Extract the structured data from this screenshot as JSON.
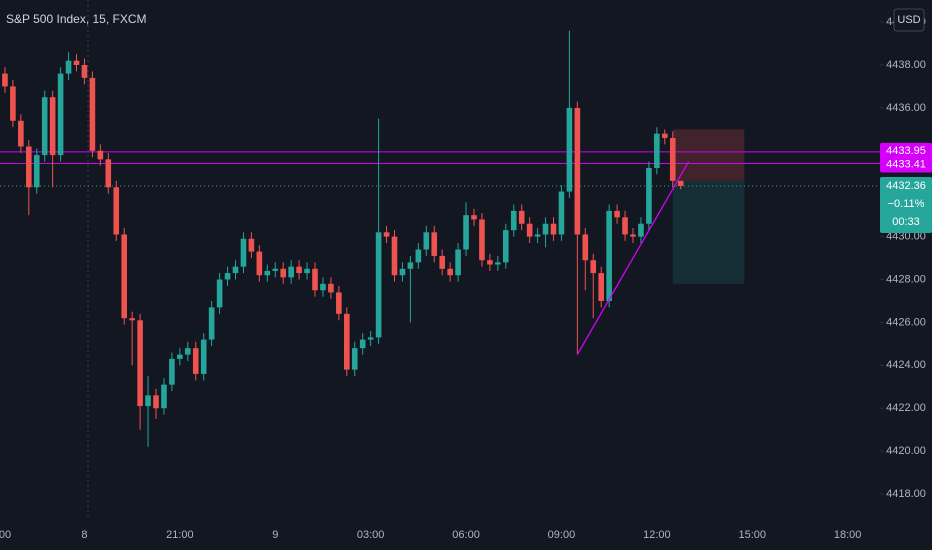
{
  "chart_data": {
    "type": "candlestick",
    "title": "S&P 500 Index, 15, FXCM",
    "currency": "USD",
    "categories": [
      null,
      "00",
      null,
      null,
      null,
      null,
      null,
      null,
      null,
      null,
      null,
      "8",
      null,
      null,
      null,
      null,
      null,
      null,
      null,
      null,
      null,
      null,
      null,
      "21:00",
      null,
      null,
      null,
      null,
      null,
      null,
      null,
      null,
      null,
      null,
      null,
      "9",
      null,
      null,
      null,
      null,
      null,
      null,
      null,
      null,
      null,
      null,
      null,
      "03:00",
      null,
      null,
      null,
      null,
      null,
      null,
      null,
      null,
      null,
      null,
      null,
      "06:00",
      null,
      null,
      null,
      null,
      null,
      null,
      null,
      null,
      null,
      null,
      null,
      "09:00",
      null,
      null,
      null,
      null,
      null,
      null,
      null,
      null,
      null,
      null,
      null,
      "12:00",
      null,
      null,
      null,
      null,
      null,
      null,
      null,
      null,
      null,
      null,
      null,
      "15:00",
      null,
      null,
      null,
      null,
      null,
      null,
      null,
      null,
      null,
      null,
      null,
      "18:00",
      null,
      null,
      null,
      null
    ],
    "open": [
      4438.2,
      4437.6,
      4437.0,
      4435.4,
      4434.2,
      4432.3,
      4433.8,
      4436.5,
      4433.8,
      4437.6,
      4438.2,
      4438.0,
      4437.4,
      4434.0,
      4433.6,
      4432.3,
      4430.1,
      4426.2,
      4426.1,
      4422.1,
      4422.6,
      4422.0,
      4423.1,
      4424.3,
      4424.5,
      4424.8,
      4423.6,
      4425.2,
      4426.7,
      4428.0,
      4428.3,
      4428.6,
      4429.9,
      4429.3,
      4428.2,
      4428.4,
      4428.5,
      4428.1,
      4428.6,
      4428.3,
      4428.5,
      4427.5,
      4427.8,
      4427.4,
      4426.4,
      4423.8,
      4424.8,
      4425.2,
      4425.3,
      4430.2,
      4430.0,
      4428.2,
      4428.5,
      4428.8,
      4429.4,
      4430.2,
      4429.1,
      4428.5,
      4428.2,
      4429.4,
      4431.0,
      4430.8,
      4428.9,
      4428.7,
      4428.8,
      4430.3,
      4431.2,
      4430.6,
      4430.0,
      4430.1,
      4430.6,
      4430.1,
      4432.1,
      4436.0,
      4430.1,
      4428.9,
      4428.3,
      4427.0,
      4431.2,
      4430.9,
      4430.1,
      4430.0,
      4430.6,
      4433.2,
      4434.8,
      4434.6,
      4432.6,
      null,
      null,
      null,
      null,
      null,
      null,
      null,
      null,
      null,
      null,
      null,
      null,
      null,
      null,
      null,
      null,
      null,
      null,
      null,
      null,
      null,
      null,
      null,
      null,
      null
    ],
    "high": [
      4438.5,
      4437.9,
      4437.3,
      4435.7,
      4434.5,
      4434.1,
      4436.8,
      4436.8,
      4437.9,
      4438.6,
      4438.5,
      4438.3,
      4437.7,
      4434.3,
      4433.9,
      4432.6,
      4430.4,
      4426.5,
      4426.4,
      4423.5,
      4422.9,
      4423.4,
      4424.6,
      4424.8,
      4425.1,
      4425.1,
      4425.5,
      4427.0,
      4428.3,
      4428.6,
      4428.9,
      4430.2,
      4430.2,
      4429.6,
      4428.7,
      4428.8,
      4428.8,
      4428.9,
      4428.9,
      4428.8,
      4428.8,
      4428.1,
      4428.1,
      4427.7,
      4426.7,
      4425.1,
      4425.5,
      4425.6,
      4435.5,
      4430.5,
      4430.3,
      4428.8,
      4429.1,
      4429.7,
      4430.5,
      4430.5,
      4429.4,
      4428.8,
      4429.7,
      4431.6,
      4431.3,
      4431.1,
      4429.2,
      4429.1,
      4430.6,
      4431.5,
      4431.5,
      4430.9,
      4430.4,
      4430.9,
      4430.9,
      4432.4,
      4439.6,
      4436.3,
      4430.4,
      4429.2,
      4428.6,
      4431.5,
      4431.5,
      4431.2,
      4430.4,
      4430.9,
      4433.5,
      4435.1,
      4435.0,
      4434.9,
      4432.6,
      null,
      null,
      null,
      null,
      null,
      null,
      null,
      null,
      null,
      null,
      null,
      null,
      null,
      null,
      null,
      null,
      null,
      null,
      null,
      null,
      null,
      null,
      null,
      null,
      null
    ],
    "low": [
      4437.3,
      4436.7,
      4435.1,
      4433.9,
      4431.0,
      4432.0,
      4433.5,
      4432.3,
      4433.5,
      4437.3,
      4437.7,
      4437.1,
      4433.7,
      4433.3,
      4432.0,
      4429.8,
      4425.9,
      4424.0,
      4421.0,
      4420.2,
      4421.5,
      4421.7,
      4422.8,
      4424.0,
      4424.2,
      4423.3,
      4423.3,
      4424.9,
      4426.4,
      4427.7,
      4428.0,
      4428.3,
      4429.0,
      4427.9,
      4427.9,
      4428.1,
      4427.8,
      4427.8,
      4428.0,
      4428.0,
      4427.2,
      4427.2,
      4427.1,
      4426.1,
      4423.5,
      4423.5,
      4424.5,
      4424.9,
      4425.0,
      4429.7,
      4427.9,
      4427.9,
      4426.0,
      4428.5,
      4429.1,
      4428.8,
      4428.2,
      4427.9,
      4427.9,
      4429.1,
      4430.5,
      4428.6,
      4428.4,
      4428.4,
      4428.5,
      4430.0,
      4430.3,
      4429.7,
      4429.7,
      4429.5,
      4429.8,
      4429.8,
      4431.8,
      4424.5,
      4427.5,
      4426.2,
      4426.7,
      4426.7,
      4430.6,
      4429.8,
      4429.7,
      4429.7,
      4430.3,
      4432.9,
      4434.3,
      4432.3,
      4432.2,
      null,
      null,
      null,
      null,
      null,
      null,
      null,
      null,
      null,
      null,
      null,
      null,
      null,
      null,
      null,
      null,
      null,
      null,
      null,
      null,
      null,
      null,
      null,
      null,
      null
    ],
    "close": [
      4437.6,
      4437.0,
      4435.4,
      4434.2,
      4432.3,
      4433.8,
      4436.5,
      4433.8,
      4437.6,
      4438.2,
      4438.0,
      4437.4,
      4434.0,
      4433.6,
      4432.3,
      4430.1,
      4426.2,
      4426.1,
      4422.1,
      4422.6,
      4422.0,
      4423.1,
      4424.3,
      4424.5,
      4424.8,
      4423.6,
      4425.2,
      4426.7,
      4428.0,
      4428.3,
      4428.6,
      4429.9,
      4429.3,
      4428.2,
      4428.4,
      4428.5,
      4428.1,
      4428.6,
      4428.3,
      4428.5,
      4427.5,
      4427.8,
      4427.4,
      4426.4,
      4423.8,
      4424.8,
      4425.2,
      4425.3,
      4430.2,
      4430.0,
      4428.2,
      4428.5,
      4428.8,
      4429.4,
      4430.2,
      4429.1,
      4428.5,
      4428.2,
      4429.4,
      4431.0,
      4430.8,
      4428.9,
      4428.7,
      4428.8,
      4430.3,
      4431.2,
      4430.6,
      4430.0,
      4430.1,
      4430.6,
      4430.1,
      4432.1,
      4436.0,
      4430.1,
      4428.9,
      4428.3,
      4427.0,
      4431.2,
      4430.9,
      4430.1,
      4430.0,
      4430.6,
      4433.2,
      4434.8,
      4434.6,
      4432.6,
      4432.36,
      null,
      null,
      null,
      null,
      null,
      null,
      null,
      null,
      null,
      null,
      null,
      null,
      null,
      null,
      null,
      null,
      null,
      null,
      null,
      null,
      null,
      null,
      null,
      null,
      null
    ],
    "up_color": "#26a69a",
    "down_color": "#ef5350",
    "ylim": [
      4416.79,
      4441.03
    ],
    "yticks": [
      {
        "value": 4418,
        "label": "4418.00"
      },
      {
        "value": 4420,
        "label": "4420.00"
      },
      {
        "value": 4422,
        "label": "4422.00"
      },
      {
        "value": 4424,
        "label": "4424.00"
      },
      {
        "value": 4426,
        "label": "4426.00"
      },
      {
        "value": 4428,
        "label": "4428.00"
      },
      {
        "value": 4430,
        "label": "4430.00"
      },
      {
        "value": 4432,
        "label": "4432.00"
      },
      {
        "value": 4434,
        "label": "4434.00"
      },
      {
        "value": 4436,
        "label": "4436.00"
      },
      {
        "value": 4438,
        "label": "4438.00"
      },
      {
        "value": 4440,
        "label": "4440.00"
      }
    ],
    "horizontal_lines": [
      {
        "value": 4433.95,
        "color": "#d500f9"
      },
      {
        "value": 4433.41,
        "color": "#d500f9"
      }
    ],
    "last_price": 4432.36,
    "change": {
      "value": -0.11,
      "label": "−0.11%"
    },
    "countdown": "00:33",
    "trendline": {
      "from": {
        "bar": 73,
        "price": 4424.5
      },
      "to": {
        "bar": 87,
        "price": 4433.5
      },
      "color": "#d500f9"
    },
    "position": {
      "from_bar": 85,
      "to_bar": 94,
      "stop": 4435.0,
      "entry": 4432.6,
      "target": 4427.8
    }
  }
}
